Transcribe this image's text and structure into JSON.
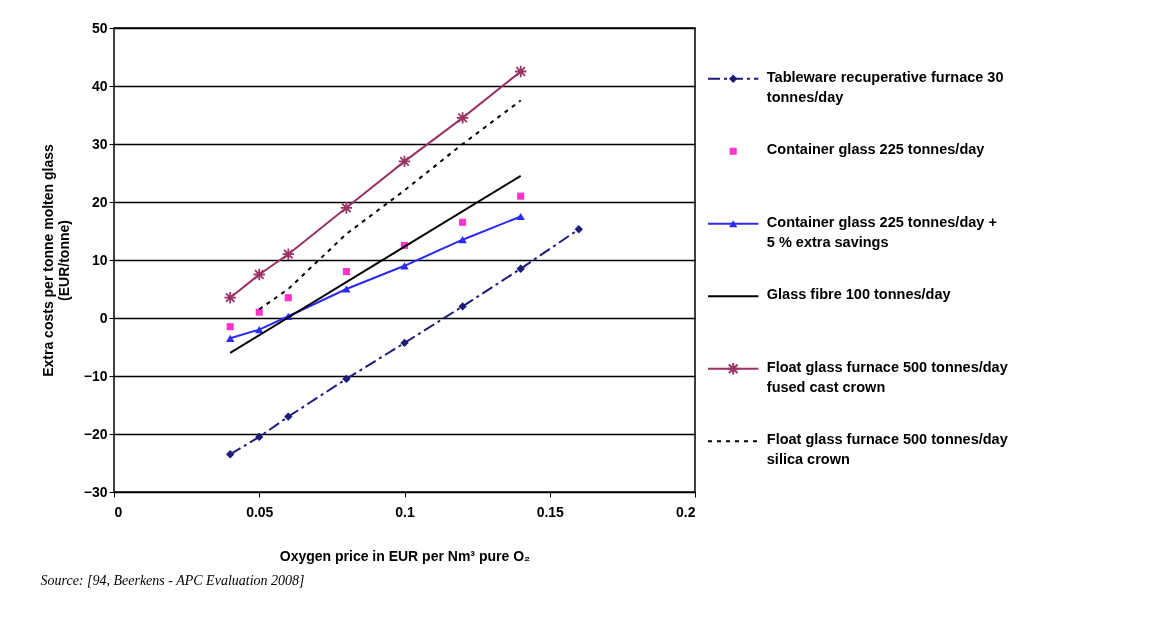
{
  "chart_data": {
    "type": "line",
    "xlabel": "Oxygen price in EUR per Nm³ pure O₂",
    "ylabel": "Extra costs per tonne molten glass (EUR/tonne)",
    "xlim": [
      0,
      0.2
    ],
    "xticks": [
      0,
      0.05,
      0.1,
      0.15,
      0.2
    ],
    "ylim": [
      -30,
      50
    ],
    "yticks": [
      -30,
      -20,
      -10,
      0,
      10,
      20,
      30,
      40,
      50
    ],
    "grid": "y",
    "legend": "right",
    "series": [
      {
        "name": "Tableware  recuperative furnace 30 tonnes/day",
        "color": "#1c1c78",
        "marker": "diamond",
        "line_style": "dashed",
        "x": [
          0.04,
          0.05,
          0.06,
          0.08,
          0.1,
          0.12,
          0.14,
          0.16
        ],
        "values": [
          -23.5,
          -20.5,
          -17,
          -10.5,
          -4.3,
          2,
          8.5,
          15.3
        ]
      },
      {
        "name": "Container glass  225 tonnes/day",
        "type": "scatter",
        "color": "#ff33cc",
        "marker": "square",
        "x": [
          0.04,
          0.05,
          0.06,
          0.08,
          0.1,
          0.12,
          0.14
        ],
        "values": [
          -1.5,
          1,
          3.5,
          8,
          12.5,
          16.5,
          21
        ]
      },
      {
        "name": "Container glass  225 tonnes/day + 5 % extra savings",
        "color": "#2b2bf0",
        "marker": "triangle",
        "line_style": "solid",
        "x": [
          0.04,
          0.05,
          0.06,
          0.08,
          0.1,
          0.12,
          0.14
        ],
        "values": [
          -3.5,
          -2,
          0.3,
          5,
          9,
          13.5,
          17.5
        ]
      },
      {
        "name": "Glass fibre 100 tonnes/day",
        "color": "#000000",
        "marker": "none",
        "line_style": "solid",
        "x": [
          0.04,
          0.14
        ],
        "values": [
          -6,
          24.5
        ]
      },
      {
        "name": "Float glass furnace 500 tonnes/day fused cast crown",
        "color": "#993366",
        "marker": "cross",
        "line_style": "solid",
        "x": [
          0.04,
          0.05,
          0.06,
          0.08,
          0.1,
          0.12,
          0.14
        ],
        "values": [
          3.5,
          7.5,
          11,
          19,
          27,
          34.5,
          42.5
        ]
      },
      {
        "name": "Float glass furnace 500 tonnes/day silica crown",
        "color": "#000000",
        "marker": "none",
        "line_style": "dotted",
        "x": [
          0.05,
          0.06,
          0.08,
          0.1,
          0.12,
          0.14
        ],
        "values": [
          1.5,
          5,
          14.5,
          22,
          30,
          37.5
        ]
      }
    ],
    "annotations": [
      "Source: [94, Beerkens - APC Evaluation 2008]"
    ]
  }
}
